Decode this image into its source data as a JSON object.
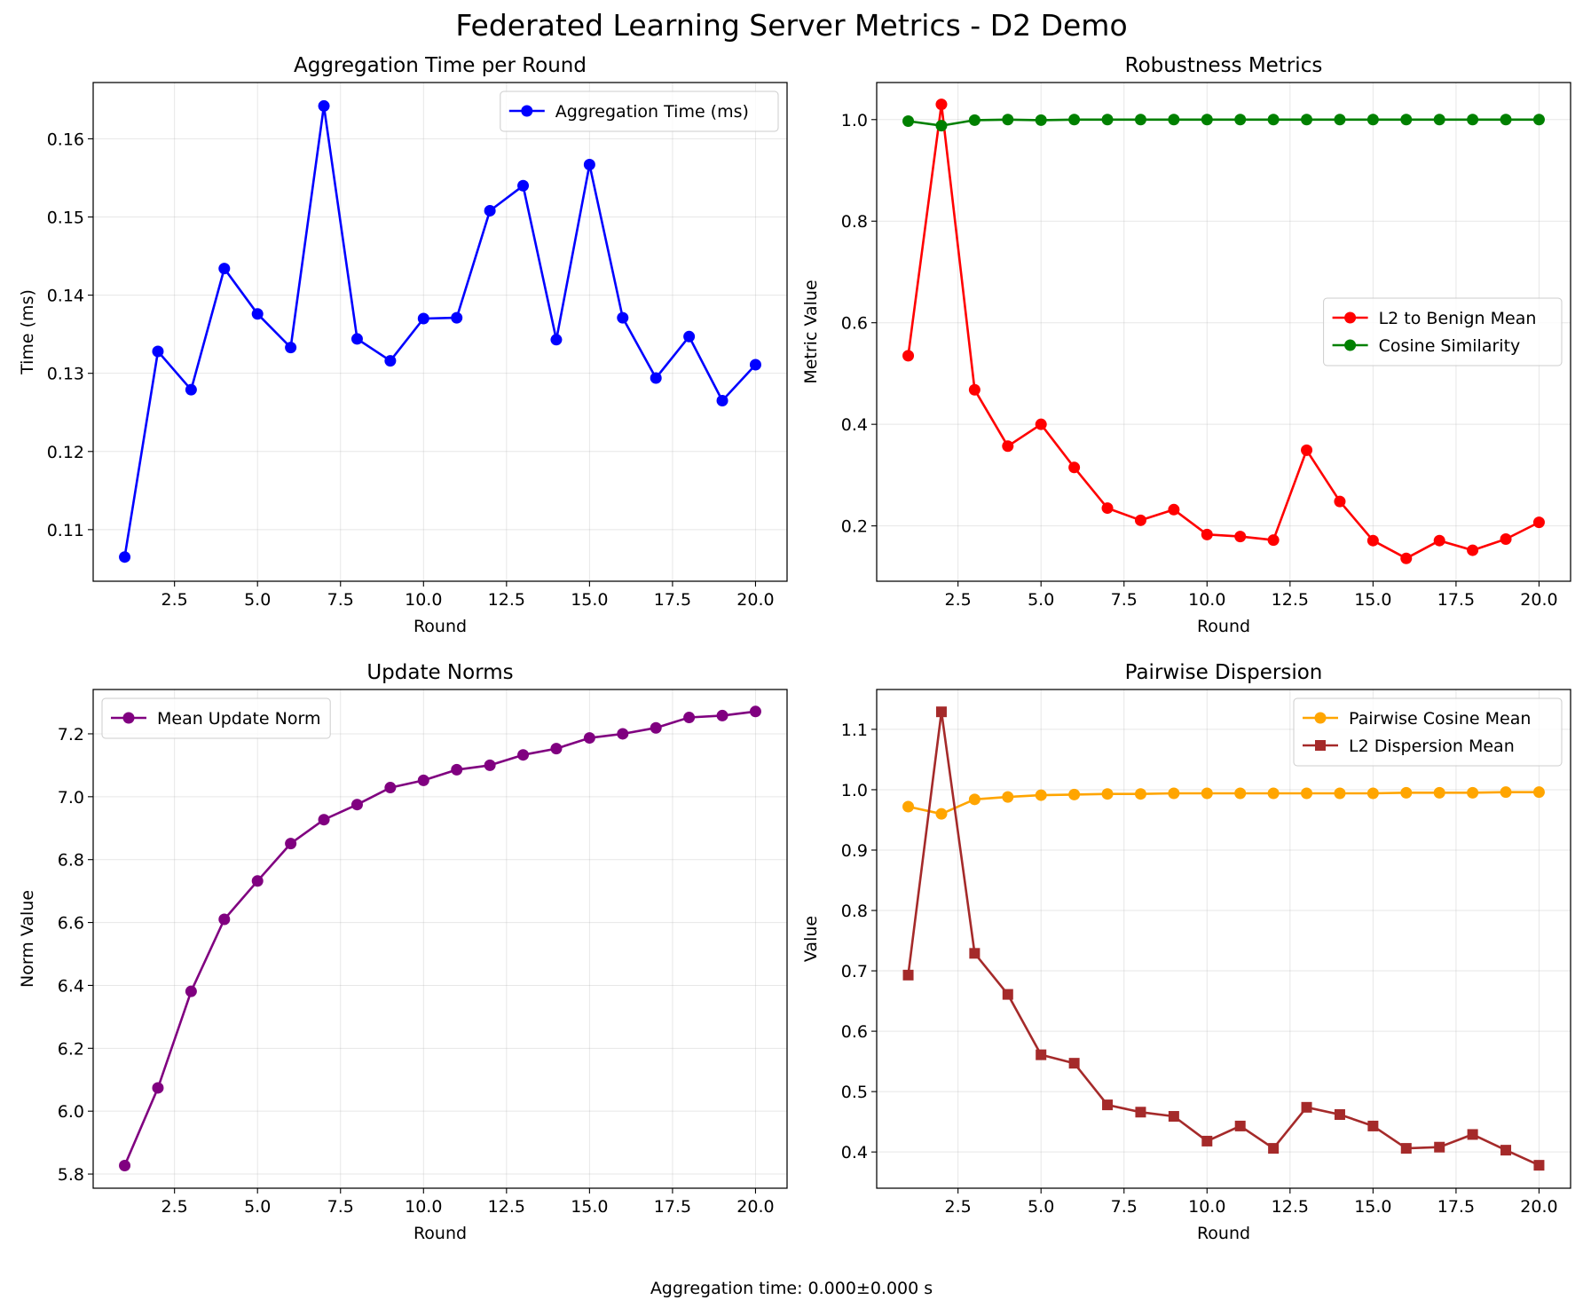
{
  "figure": {
    "title": "Federated Learning Server Metrics - D2 Demo",
    "footer": "Aggregation time: 0.000±0.000 s"
  },
  "chart_data": [
    {
      "type": "line",
      "title": "Aggregation Time per Round",
      "xlabel": "Round",
      "ylabel": "Time (ms)",
      "xlim": [
        0.05,
        20.95
      ],
      "ylim": [
        0.1034,
        0.1672
      ],
      "xticks": [
        2.5,
        5.0,
        7.5,
        10.0,
        12.5,
        15.0,
        17.5,
        20.0
      ],
      "xtick_labels": [
        "2.5",
        "5.0",
        "7.5",
        "10.0",
        "12.5",
        "15.0",
        "17.5",
        "20.0"
      ],
      "yticks": [
        0.11,
        0.12,
        0.13,
        0.14,
        0.15,
        0.16
      ],
      "ytick_labels": [
        "0.11",
        "0.12",
        "0.13",
        "0.14",
        "0.15",
        "0.16"
      ],
      "grid": true,
      "legend_position": "top-right",
      "x": [
        1,
        2,
        3,
        4,
        5,
        6,
        7,
        8,
        9,
        10,
        11,
        12,
        13,
        14,
        15,
        16,
        17,
        18,
        19,
        20
      ],
      "series": [
        {
          "name": "Aggregation Time (ms)",
          "color": "#0000ff",
          "marker": "circle",
          "values": [
            0.1065,
            0.1328,
            0.1279,
            0.1434,
            0.1376,
            0.1333,
            0.1642,
            0.1344,
            0.1316,
            0.137,
            0.1371,
            0.1508,
            0.154,
            0.1343,
            0.1567,
            0.1371,
            0.1294,
            0.1347,
            0.1265,
            0.1311
          ]
        }
      ]
    },
    {
      "type": "line",
      "title": "Robustness Metrics",
      "xlabel": "Round",
      "ylabel": "Metric Value",
      "xlim": [
        0.05,
        20.95
      ],
      "ylim": [
        0.091,
        1.073
      ],
      "xticks": [
        2.5,
        5.0,
        7.5,
        10.0,
        12.5,
        15.0,
        17.5,
        20.0
      ],
      "xtick_labels": [
        "2.5",
        "5.0",
        "7.5",
        "10.0",
        "12.5",
        "15.0",
        "17.5",
        "20.0"
      ],
      "yticks": [
        0.2,
        0.4,
        0.6,
        0.8,
        1.0
      ],
      "ytick_labels": [
        "0.2",
        "0.4",
        "0.6",
        "0.8",
        "1.0"
      ],
      "grid": true,
      "legend_position": "center-right",
      "x": [
        1,
        2,
        3,
        4,
        5,
        6,
        7,
        8,
        9,
        10,
        11,
        12,
        13,
        14,
        15,
        16,
        17,
        18,
        19,
        20
      ],
      "series": [
        {
          "name": "L2 to Benign Mean",
          "color": "#ff0000",
          "marker": "circle",
          "values": [
            0.535,
            1.03,
            0.468,
            0.357,
            0.4,
            0.315,
            0.235,
            0.211,
            0.232,
            0.183,
            0.179,
            0.172,
            0.349,
            0.248,
            0.171,
            0.136,
            0.171,
            0.152,
            0.174,
            0.207
          ]
        },
        {
          "name": "Cosine Similarity",
          "color": "#008000",
          "marker": "circle",
          "values": [
            0.997,
            0.988,
            0.999,
            1.0,
            0.999,
            1.0,
            1.0,
            1.0,
            1.0,
            1.0,
            1.0,
            1.0,
            1.0,
            1.0,
            1.0,
            1.0,
            1.0,
            1.0,
            1.0,
            1.0
          ]
        }
      ]
    },
    {
      "type": "line",
      "title": "Update Norms",
      "xlabel": "Round",
      "ylabel": "Norm Value",
      "xlim": [
        0.05,
        20.95
      ],
      "ylim": [
        5.755,
        7.341
      ],
      "xticks": [
        2.5,
        5.0,
        7.5,
        10.0,
        12.5,
        15.0,
        17.5,
        20.0
      ],
      "xtick_labels": [
        "2.5",
        "5.0",
        "7.5",
        "10.0",
        "12.5",
        "15.0",
        "17.5",
        "20.0"
      ],
      "yticks": [
        5.8,
        6.0,
        6.2,
        6.4,
        6.6,
        6.8,
        7.0,
        7.2
      ],
      "ytick_labels": [
        "5.8",
        "6.0",
        "6.2",
        "6.4",
        "6.6",
        "6.8",
        "7.0",
        "7.2"
      ],
      "grid": true,
      "legend_position": "top-left",
      "x": [
        1,
        2,
        3,
        4,
        5,
        6,
        7,
        8,
        9,
        10,
        11,
        12,
        13,
        14,
        15,
        16,
        17,
        18,
        19,
        20
      ],
      "series": [
        {
          "name": "Mean Update Norm",
          "color": "#800080",
          "marker": "circle",
          "values": [
            5.827,
            6.074,
            6.381,
            6.61,
            6.732,
            6.851,
            6.927,
            6.975,
            7.029,
            7.052,
            7.086,
            7.1,
            7.133,
            7.153,
            7.187,
            7.2,
            7.219,
            7.252,
            7.258,
            7.271
          ]
        }
      ]
    },
    {
      "type": "line",
      "title": "Pairwise Dispersion",
      "xlabel": "Round",
      "ylabel": "Value",
      "xlim": [
        0.05,
        20.95
      ],
      "ylim": [
        0.34,
        1.166
      ],
      "xticks": [
        2.5,
        5.0,
        7.5,
        10.0,
        12.5,
        15.0,
        17.5,
        20.0
      ],
      "xtick_labels": [
        "2.5",
        "5.0",
        "7.5",
        "10.0",
        "12.5",
        "15.0",
        "17.5",
        "20.0"
      ],
      "yticks": [
        0.4,
        0.5,
        0.6,
        0.7,
        0.8,
        0.9,
        1.0,
        1.1
      ],
      "ytick_labels": [
        "0.4",
        "0.5",
        "0.6",
        "0.7",
        "0.8",
        "0.9",
        "1.0",
        "1.1"
      ],
      "grid": true,
      "legend_position": "top-right",
      "x": [
        1,
        2,
        3,
        4,
        5,
        6,
        7,
        8,
        9,
        10,
        11,
        12,
        13,
        14,
        15,
        16,
        17,
        18,
        19,
        20
      ],
      "series": [
        {
          "name": "Pairwise Cosine Mean",
          "color": "#ffa500",
          "marker": "circle",
          "values": [
            0.972,
            0.96,
            0.984,
            0.988,
            0.991,
            0.992,
            0.993,
            0.993,
            0.994,
            0.994,
            0.994,
            0.994,
            0.994,
            0.994,
            0.994,
            0.995,
            0.995,
            0.995,
            0.996,
            0.996
          ]
        },
        {
          "name": "L2 Dispersion Mean",
          "color": "#a52a2a",
          "marker": "square",
          "values": [
            0.693,
            1.129,
            0.729,
            0.661,
            0.561,
            0.547,
            0.478,
            0.466,
            0.459,
            0.418,
            0.443,
            0.406,
            0.474,
            0.462,
            0.443,
            0.406,
            0.408,
            0.429,
            0.403,
            0.378
          ]
        }
      ]
    }
  ]
}
